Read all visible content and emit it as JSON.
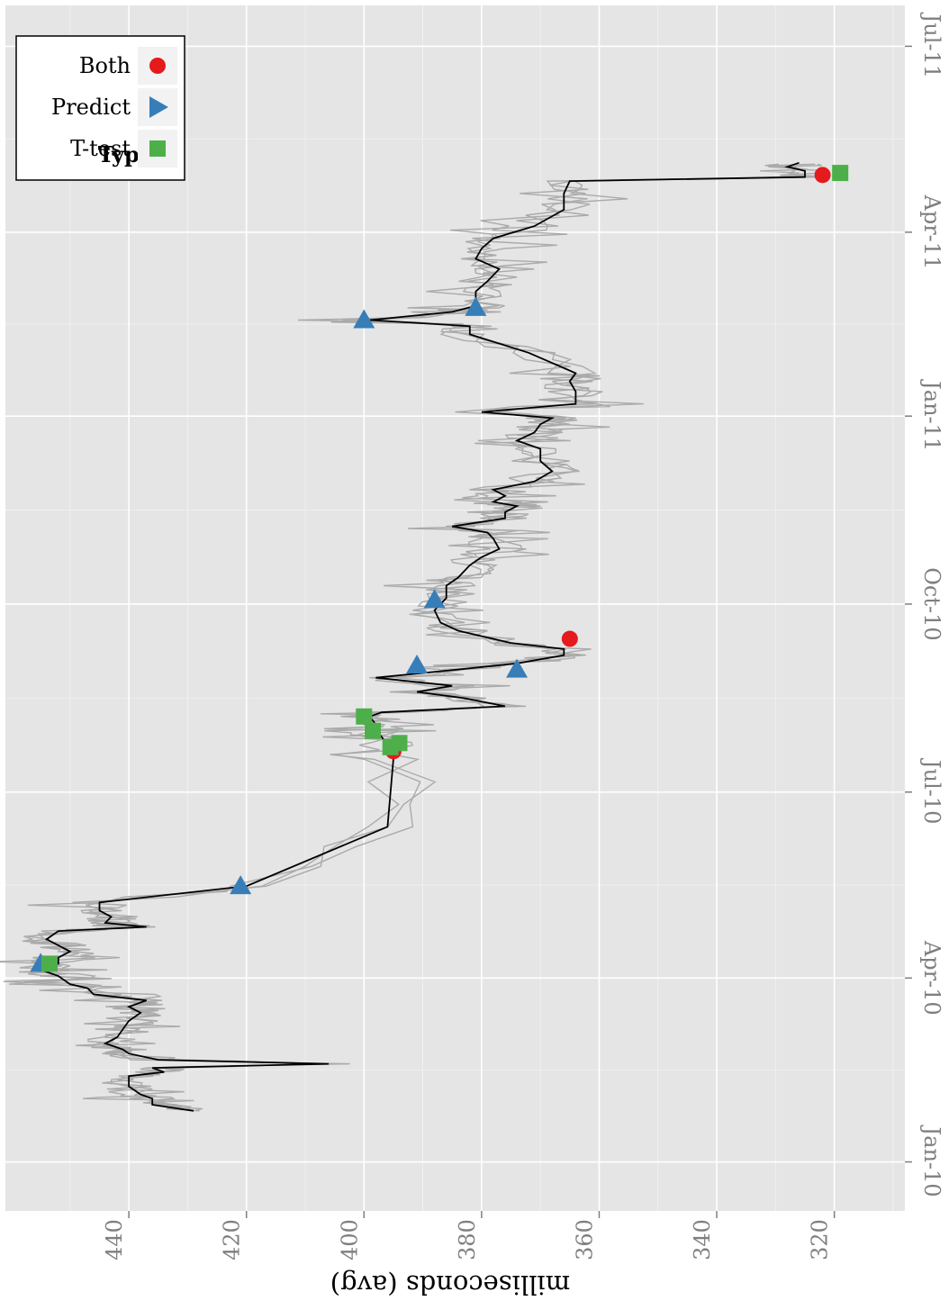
{
  "chart_data": {
    "type": "line",
    "xlabel": "",
    "ylabel": "milliseconds (avg)",
    "x_ticks": [
      "Jan-10",
      "Apr-10",
      "Jul-10",
      "Oct-10",
      "Jan-11",
      "Apr-11",
      "Jul-11"
    ],
    "x_tick_dates": [
      "2010-01-01",
      "2010-04-01",
      "2010-07-01",
      "2010-10-01",
      "2011-01-01",
      "2011-04-01",
      "2011-07-01"
    ],
    "x_range": [
      "2009-12-08",
      "2011-07-21"
    ],
    "y_ticks": [
      320,
      340,
      360,
      380,
      400,
      420,
      440
    ],
    "y_range": [
      308,
      461
    ],
    "grid": true,
    "legend_position": "top-right",
    "legend": {
      "title": "Type",
      "entries": [
        {
          "name": "Both",
          "shape": "circle",
          "color": "#e41a1c"
        },
        {
          "name": "Predict",
          "shape": "triangle",
          "color": "#377eb8"
        },
        {
          "name": "T-test",
          "shape": "square",
          "color": "#4daf4a"
        }
      ]
    },
    "series_colors": {
      "main": "#000000",
      "raw": "#aaaaaa"
    },
    "main_series": [
      [
        "2010-01-26",
        429
      ],
      [
        "2010-01-29",
        436
      ],
      [
        "2010-02-01",
        436
      ],
      [
        "2010-02-03",
        438
      ],
      [
        "2010-02-07",
        440
      ],
      [
        "2010-02-12",
        440
      ],
      [
        "2010-02-14",
        434
      ],
      [
        "2010-02-16",
        436
      ],
      [
        "2010-02-18",
        406
      ],
      [
        "2010-02-20",
        435
      ],
      [
        "2010-02-23",
        440
      ],
      [
        "2010-02-25",
        441
      ],
      [
        "2010-02-28",
        444
      ],
      [
        "2010-03-03",
        442
      ],
      [
        "2010-03-07",
        441
      ],
      [
        "2010-03-11",
        440
      ],
      [
        "2010-03-15",
        438
      ],
      [
        "2010-03-18",
        440
      ],
      [
        "2010-03-21",
        437
      ],
      [
        "2010-03-24",
        446
      ],
      [
        "2010-03-27",
        447
      ],
      [
        "2010-03-29",
        450
      ],
      [
        "2010-04-02",
        452
      ],
      [
        "2010-04-05",
        455
      ],
      [
        "2010-04-08",
        452
      ],
      [
        "2010-04-11",
        452
      ],
      [
        "2010-04-14",
        450
      ],
      [
        "2010-04-17",
        452
      ],
      [
        "2010-04-20",
        454
      ],
      [
        "2010-04-24",
        452
      ],
      [
        "2010-04-26",
        437
      ],
      [
        "2010-04-28",
        444
      ],
      [
        "2010-05-01",
        443
      ],
      [
        "2010-05-04",
        445
      ],
      [
        "2010-05-08",
        445
      ],
      [
        "2010-05-16",
        420
      ],
      [
        "2010-06-14",
        396
      ],
      [
        "2010-07-17",
        395
      ],
      [
        "2010-07-24",
        396
      ],
      [
        "2010-07-28",
        397
      ],
      [
        "2010-07-31",
        398
      ],
      [
        "2010-08-03",
        398
      ],
      [
        "2010-08-07",
        399
      ],
      [
        "2010-08-09",
        397
      ],
      [
        "2010-08-12",
        376
      ],
      [
        "2010-08-16",
        383
      ],
      [
        "2010-08-19",
        391
      ],
      [
        "2010-08-22",
        385
      ],
      [
        "2010-08-26",
        398
      ],
      [
        "2010-08-30",
        384
      ],
      [
        "2010-09-02",
        374
      ],
      [
        "2010-09-06",
        366
      ],
      [
        "2010-09-09",
        366
      ],
      [
        "2010-09-12",
        375
      ],
      [
        "2010-09-18",
        384
      ],
      [
        "2010-09-22",
        387
      ],
      [
        "2010-09-28",
        388
      ],
      [
        "2010-10-04",
        386
      ],
      [
        "2010-10-10",
        386
      ],
      [
        "2010-10-14",
        384
      ],
      [
        "2010-10-20",
        382
      ],
      [
        "2010-10-24",
        380
      ],
      [
        "2010-10-28",
        377
      ],
      [
        "2010-11-02",
        378
      ],
      [
        "2010-11-05",
        379
      ],
      [
        "2010-11-08",
        385
      ],
      [
        "2010-11-12",
        376
      ],
      [
        "2010-11-15",
        376
      ],
      [
        "2010-11-18",
        374
      ],
      [
        "2010-11-20",
        378
      ],
      [
        "2010-11-23",
        376
      ],
      [
        "2010-11-26",
        378
      ],
      [
        "2010-11-30",
        371
      ],
      [
        "2010-12-05",
        368
      ],
      [
        "2010-12-10",
        370
      ],
      [
        "2010-12-16",
        370
      ],
      [
        "2010-12-20",
        374
      ],
      [
        "2010-12-24",
        371
      ],
      [
        "2010-12-28",
        370
      ],
      [
        "2010-12-31",
        368
      ],
      [
        "2011-01-03",
        380
      ],
      [
        "2011-01-07",
        364
      ],
      [
        "2011-01-13",
        364
      ],
      [
        "2011-01-18",
        365
      ],
      [
        "2011-01-22",
        364
      ],
      [
        "2011-02-01",
        372
      ],
      [
        "2011-02-10",
        382
      ],
      [
        "2011-02-14",
        382
      ],
      [
        "2011-02-17",
        399
      ],
      [
        "2011-02-21",
        385
      ],
      [
        "2011-02-24",
        381
      ],
      [
        "2011-03-03",
        381
      ],
      [
        "2011-03-08",
        379
      ],
      [
        "2011-03-14",
        377
      ],
      [
        "2011-03-19",
        381
      ],
      [
        "2011-03-24",
        380
      ],
      [
        "2011-03-29",
        378
      ],
      [
        "2011-04-04",
        371
      ],
      [
        "2011-04-12",
        366
      ],
      [
        "2011-04-20",
        366
      ],
      [
        "2011-04-26",
        365
      ],
      [
        "2011-04-28",
        325
      ],
      [
        "2011-05-01",
        325
      ],
      [
        "2011-05-03",
        328
      ],
      [
        "2011-05-05",
        326
      ]
    ],
    "markers": [
      {
        "type": "Predict",
        "date": "2010-04-08",
        "value": 455
      },
      {
        "type": "T-test",
        "date": "2010-04-08",
        "value": 453.5
      },
      {
        "type": "Predict",
        "date": "2010-05-16",
        "value": 421
      },
      {
        "type": "Both",
        "date": "2010-07-21",
        "value": 395
      },
      {
        "type": "T-test",
        "date": "2010-07-23",
        "value": 395.5
      },
      {
        "type": "T-test",
        "date": "2010-07-25",
        "value": 394
      },
      {
        "type": "T-test",
        "date": "2010-07-31",
        "value": 398.5
      },
      {
        "type": "T-test",
        "date": "2010-08-07",
        "value": 400
      },
      {
        "type": "Predict",
        "date": "2010-08-30",
        "value": 374
      },
      {
        "type": "Predict",
        "date": "2010-09-01",
        "value": 391
      },
      {
        "type": "Both",
        "date": "2010-09-14",
        "value": 365
      },
      {
        "type": "Predict",
        "date": "2010-10-03",
        "value": 388
      },
      {
        "type": "Predict",
        "date": "2011-02-17",
        "value": 400
      },
      {
        "type": "Predict",
        "date": "2011-02-23",
        "value": 381
      },
      {
        "type": "Both",
        "date": "2011-04-29",
        "value": 322
      },
      {
        "type": "T-test",
        "date": "2011-04-30",
        "value": 319
      }
    ]
  }
}
